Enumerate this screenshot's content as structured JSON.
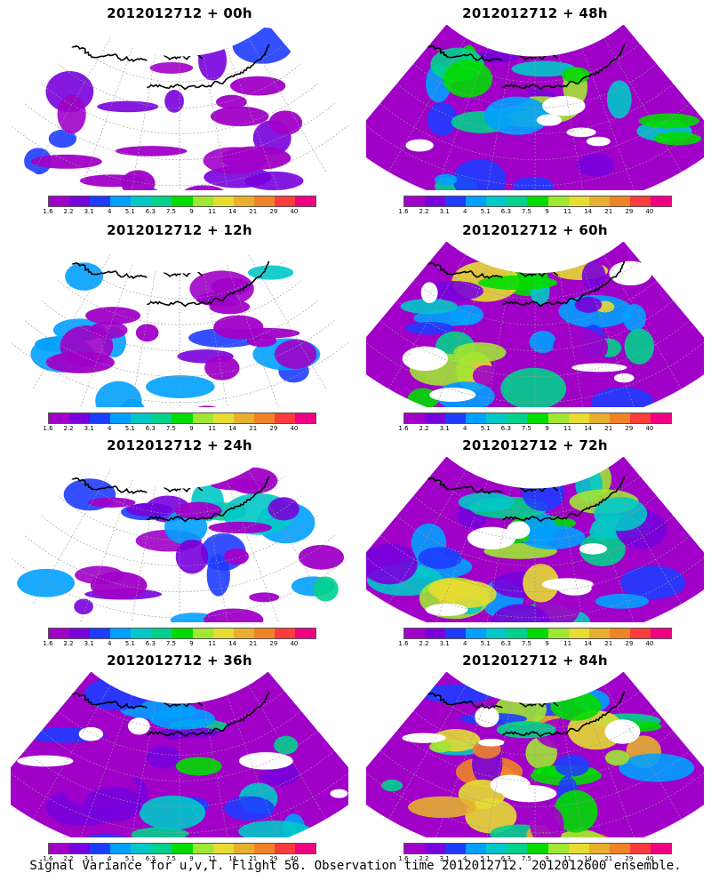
{
  "panels": [
    {
      "title": "2012012712 + 00h",
      "lead_hours": 0
    },
    {
      "title": "2012012712 + 48h",
      "lead_hours": 48
    },
    {
      "title": "2012012712 + 12h",
      "lead_hours": 12
    },
    {
      "title": "2012012712 + 60h",
      "lead_hours": 60
    },
    {
      "title": "2012012712 + 24h",
      "lead_hours": 24
    },
    {
      "title": "2012012712 + 72h",
      "lead_hours": 72
    },
    {
      "title": "2012012712 + 36h",
      "lead_hours": 36
    },
    {
      "title": "2012012712 + 84h",
      "lead_hours": 84
    }
  ],
  "colorbar": {
    "labels": [
      "1.6",
      "2.2",
      "3.1",
      "4",
      "5.1",
      "6.3",
      "7.5",
      "9",
      "11",
      "14",
      "21",
      "29",
      "40"
    ],
    "colors": [
      "#a000c8",
      "#7800dc",
      "#1e3cff",
      "#00a0ff",
      "#00c8c8",
      "#00d28c",
      "#00dc00",
      "#a0e632",
      "#e6dc32",
      "#e6af2d",
      "#f08228",
      "#fa3c3c",
      "#f00082"
    ]
  },
  "footer": "Signal Variance for u,v,T. Flight 56. Observation time 2012012712. 2012012600 ensemble."
}
